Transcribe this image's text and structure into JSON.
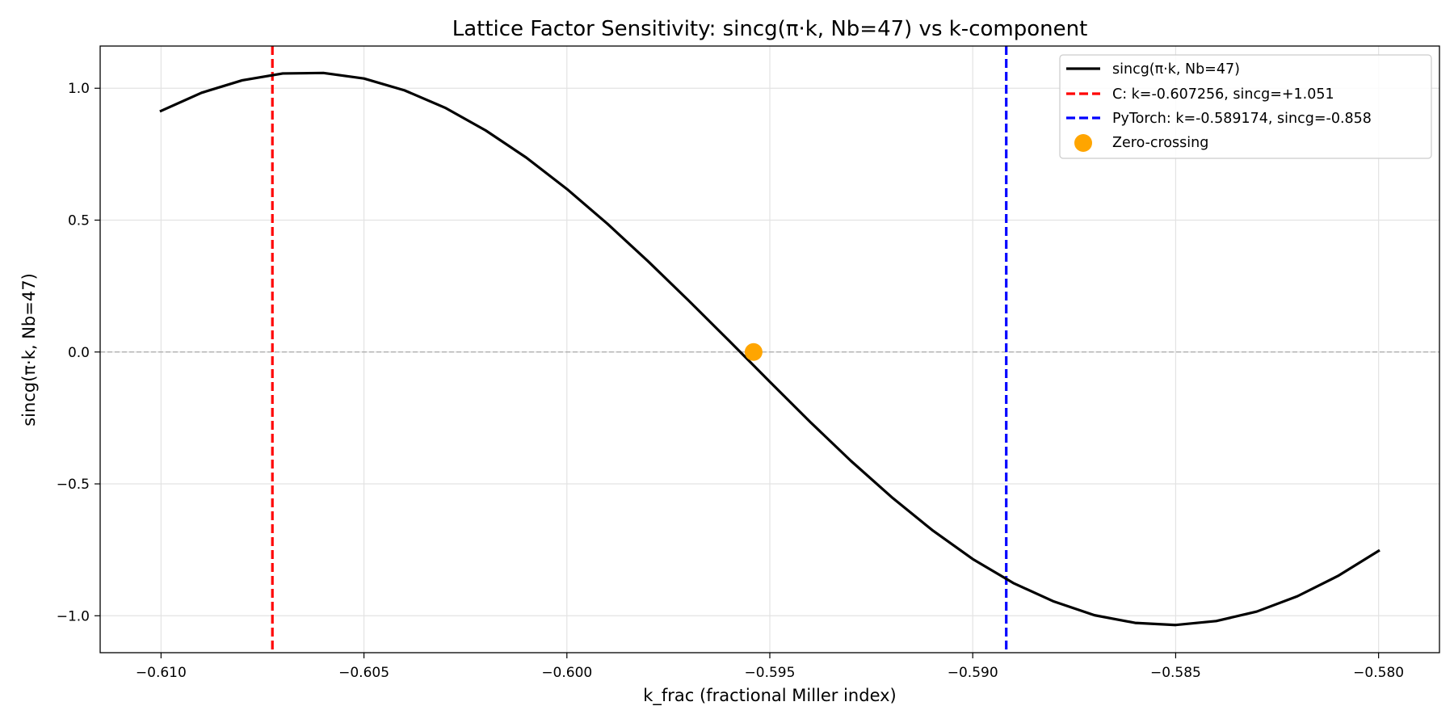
{
  "chart_data": {
    "type": "line",
    "title": "Lattice Factor Sensitivity: sincg(π·k, Nb=47) vs k-component",
    "xlabel": "k_frac (fractional Miller index)",
    "ylabel": "sincg(π·k, Nb=47)",
    "xlim": [
      -0.6115,
      -0.5785
    ],
    "ylim": [
      -1.14,
      1.16
    ],
    "x_ticks": [
      -0.61,
      -0.605,
      -0.6,
      -0.595,
      -0.59,
      -0.585,
      -0.58
    ],
    "x_tick_labels": [
      "−0.610",
      "−0.605",
      "−0.600",
      "−0.595",
      "−0.590",
      "−0.585",
      "−0.580"
    ],
    "y_ticks": [
      1.0,
      0.5,
      0.0,
      -0.5,
      -1.0
    ],
    "y_tick_labels": [
      "1.0",
      "0.5",
      "0.0",
      "−0.5",
      "−1.0"
    ],
    "grid": true,
    "legend_position": "top-right",
    "series": [
      {
        "name": "sincg(π·k, Nb=47)",
        "color": "#000000",
        "style": "solid",
        "x": [
          -0.61,
          -0.609,
          -0.608,
          -0.607,
          -0.606,
          -0.605,
          -0.604,
          -0.603,
          -0.602,
          -0.601,
          -0.6,
          -0.599,
          -0.598,
          -0.597,
          -0.596,
          -0.595,
          -0.594,
          -0.593,
          -0.592,
          -0.591,
          -0.59,
          -0.589,
          -0.588,
          -0.587,
          -0.586,
          -0.585,
          -0.584,
          -0.583,
          -0.582,
          -0.581,
          -0.58
        ],
        "y": [
          0.914,
          0.983,
          1.03,
          1.056,
          1.058,
          1.037,
          0.992,
          0.926,
          0.84,
          0.737,
          0.618,
          0.486,
          0.344,
          0.195,
          0.042,
          -0.113,
          -0.266,
          -0.413,
          -0.55,
          -0.675,
          -0.785,
          -0.876,
          -0.946,
          -0.998,
          -1.027,
          -1.035,
          -1.02,
          -0.984,
          -0.926,
          -0.849,
          -0.754
        ]
      }
    ],
    "vlines": [
      {
        "name": "C: k=-0.607256, sincg=+1.051",
        "x": -0.607256,
        "color": "#ff0000",
        "style": "dashed"
      },
      {
        "name": "PyTorch: k=-0.589174, sincg=-0.858",
        "x": -0.589174,
        "color": "#0000ff",
        "style": "dashed"
      }
    ],
    "hline": {
      "y": 0.0,
      "color": "#aaaaaa",
      "style": "dashed"
    },
    "points": [
      {
        "name": "Zero-crossing",
        "x": -0.5954,
        "y": 0.0,
        "color": "#ffa500"
      }
    ]
  }
}
